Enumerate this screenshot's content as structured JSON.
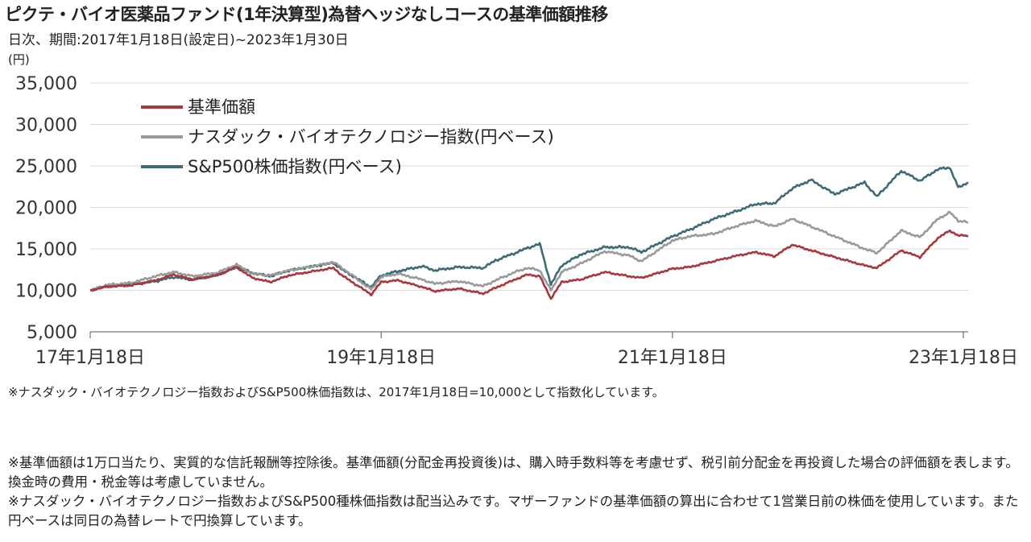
{
  "title": "ピクテ・バイオ医薬品ファンド(1年決算型)為替ヘッジなしコースの基準価額推移",
  "subtitle": "日次、期間:2017年1月18日(設定日)~2023年1月30日",
  "unit_label": "(円)",
  "note_index": "※ナスダック・バイオテクノロジー指数およびS&P500株価指数は、2017年1月18日=10,000として指数化しています。",
  "footer_notes": [
    "※基準価額は1万口当たり、実質的な信託報酬等控除後。基準価額(分配金再投資後)は、購入時手数料等を考慮せず、税引前分配金を再投資した場合の評価額を表します。換金時の費用・税金等は考慮していません。",
    "※ナスダック・バイオテクノロジー指数およびS&P500種株価指数は配当込みです。マザーファンドの基準価額の算出に合わせて1営業日前の株価を使用しています。また円ベースは同日の為替レートで円換算しています。"
  ],
  "chart_data": {
    "type": "line",
    "title": "ピクテ・バイオ医薬品ファンド(1年決算型)為替ヘッジなしコースの基準価額推移",
    "xlabel": "",
    "ylabel": "(円)",
    "ylim": [
      5000,
      35000
    ],
    "yticks": [
      5000,
      10000,
      15000,
      20000,
      25000,
      30000,
      35000
    ],
    "ytick_labels": [
      "5,000",
      "10,000",
      "15,000",
      "20,000",
      "25,000",
      "30,000",
      "35,000"
    ],
    "xlim": [
      "2017-01-18",
      "2023-01-30"
    ],
    "xticks": [
      "2017-01-18",
      "2019-01-18",
      "2021-01-18",
      "2023-01-18"
    ],
    "xtick_labels": [
      "17年1月18日",
      "19年1月18日",
      "21年1月18日",
      "23年1月18日"
    ],
    "grid": true,
    "legend_position": "top-left",
    "series": [
      {
        "name": "基準価額",
        "color": "#a8383b",
        "points": [
          [
            "2017-01-18",
            10000
          ],
          [
            "2017-03-01",
            10450
          ],
          [
            "2017-05-01",
            10600
          ],
          [
            "2017-07-01",
            11200
          ],
          [
            "2017-08-15",
            11900
          ],
          [
            "2017-10-01",
            11300
          ],
          [
            "2017-12-01",
            11800
          ],
          [
            "2018-01-20",
            12800
          ],
          [
            "2018-03-01",
            11500
          ],
          [
            "2018-04-15",
            11000
          ],
          [
            "2018-06-01",
            11800
          ],
          [
            "2018-08-01",
            12300
          ],
          [
            "2018-09-20",
            12700
          ],
          [
            "2018-10-15",
            11700
          ],
          [
            "2018-12-24",
            9500
          ],
          [
            "2019-01-18",
            11000
          ],
          [
            "2019-03-01",
            11200
          ],
          [
            "2019-05-01",
            10400
          ],
          [
            "2019-06-01",
            9900
          ],
          [
            "2019-08-01",
            10200
          ],
          [
            "2019-10-01",
            9600
          ],
          [
            "2019-11-01",
            10300
          ],
          [
            "2019-12-20",
            11300
          ],
          [
            "2020-01-20",
            11900
          ],
          [
            "2020-02-20",
            11700
          ],
          [
            "2020-03-19",
            9000
          ],
          [
            "2020-04-15",
            11000
          ],
          [
            "2020-06-01",
            11300
          ],
          [
            "2020-08-01",
            12200
          ],
          [
            "2020-10-01",
            11700
          ],
          [
            "2020-11-01",
            11500
          ],
          [
            "2021-01-18",
            12600
          ],
          [
            "2021-03-01",
            12800
          ],
          [
            "2021-05-01",
            13500
          ],
          [
            "2021-07-01",
            14200
          ],
          [
            "2021-08-15",
            14600
          ],
          [
            "2021-10-01",
            14100
          ],
          [
            "2021-11-15",
            15500
          ],
          [
            "2022-01-01",
            14800
          ],
          [
            "2022-03-01",
            14000
          ],
          [
            "2022-05-15",
            13000
          ],
          [
            "2022-06-15",
            12700
          ],
          [
            "2022-08-15",
            14800
          ],
          [
            "2022-10-01",
            14000
          ],
          [
            "2022-11-15",
            16300
          ],
          [
            "2022-12-15",
            17200
          ],
          [
            "2023-01-05",
            16600
          ],
          [
            "2023-01-30",
            16600
          ]
        ]
      },
      {
        "name": "ナスダック・バイオテクノロジー指数(円ベース)",
        "color": "#9a9a9a",
        "points": [
          [
            "2017-01-18",
            10000
          ],
          [
            "2017-03-01",
            10650
          ],
          [
            "2017-05-01",
            10900
          ],
          [
            "2017-07-01",
            11700
          ],
          [
            "2017-08-15",
            12200
          ],
          [
            "2017-10-01",
            11700
          ],
          [
            "2017-12-01",
            12100
          ],
          [
            "2018-01-20",
            13100
          ],
          [
            "2018-03-01",
            12000
          ],
          [
            "2018-04-15",
            11800
          ],
          [
            "2018-06-01",
            12400
          ],
          [
            "2018-08-01",
            12900
          ],
          [
            "2018-09-20",
            13400
          ],
          [
            "2018-10-15",
            12600
          ],
          [
            "2018-12-24",
            10100
          ],
          [
            "2019-01-18",
            11600
          ],
          [
            "2019-03-01",
            12000
          ],
          [
            "2019-05-01",
            11300
          ],
          [
            "2019-06-01",
            10800
          ],
          [
            "2019-08-01",
            11100
          ],
          [
            "2019-10-01",
            10500
          ],
          [
            "2019-11-01",
            11200
          ],
          [
            "2019-12-20",
            12200
          ],
          [
            "2020-01-20",
            12700
          ],
          [
            "2020-02-20",
            12400
          ],
          [
            "2020-03-19",
            10000
          ],
          [
            "2020-04-15",
            12200
          ],
          [
            "2020-06-01",
            13200
          ],
          [
            "2020-08-01",
            14700
          ],
          [
            "2020-10-01",
            14200
          ],
          [
            "2020-11-01",
            13500
          ],
          [
            "2021-01-18",
            16000
          ],
          [
            "2021-03-01",
            16500
          ],
          [
            "2021-05-01",
            16800
          ],
          [
            "2021-07-01",
            17800
          ],
          [
            "2021-08-15",
            18400
          ],
          [
            "2021-10-01",
            17700
          ],
          [
            "2021-11-15",
            18600
          ],
          [
            "2022-01-01",
            17700
          ],
          [
            "2022-03-01",
            16500
          ],
          [
            "2022-05-15",
            15000
          ],
          [
            "2022-06-15",
            14500
          ],
          [
            "2022-08-15",
            17200
          ],
          [
            "2022-10-01",
            16400
          ],
          [
            "2022-11-15",
            18600
          ],
          [
            "2022-12-15",
            19400
          ],
          [
            "2023-01-05",
            18400
          ],
          [
            "2023-01-30",
            18200
          ]
        ]
      },
      {
        "name": "S&P500株価指数(円ベース)",
        "color": "#3d6b78",
        "points": [
          [
            "2017-01-18",
            10000
          ],
          [
            "2017-03-01",
            10500
          ],
          [
            "2017-05-01",
            10700
          ],
          [
            "2017-07-01",
            11100
          ],
          [
            "2017-08-15",
            11600
          ],
          [
            "2017-10-01",
            11300
          ],
          [
            "2017-12-01",
            11800
          ],
          [
            "2018-01-20",
            12800
          ],
          [
            "2018-03-01",
            12100
          ],
          [
            "2018-04-15",
            11700
          ],
          [
            "2018-06-01",
            12400
          ],
          [
            "2018-08-01",
            12900
          ],
          [
            "2018-09-20",
            13300
          ],
          [
            "2018-10-15",
            12400
          ],
          [
            "2018-12-24",
            10400
          ],
          [
            "2019-01-18",
            11800
          ],
          [
            "2019-03-01",
            12300
          ],
          [
            "2019-05-01",
            12900
          ],
          [
            "2019-06-01",
            12400
          ],
          [
            "2019-08-01",
            12800
          ],
          [
            "2019-10-01",
            12700
          ],
          [
            "2019-11-01",
            13600
          ],
          [
            "2019-12-20",
            14500
          ],
          [
            "2020-01-20",
            15100
          ],
          [
            "2020-02-20",
            15600
          ],
          [
            "2020-03-19",
            10700
          ],
          [
            "2020-04-15",
            13000
          ],
          [
            "2020-06-01",
            14300
          ],
          [
            "2020-08-01",
            15200
          ],
          [
            "2020-10-01",
            15200
          ],
          [
            "2020-11-01",
            14600
          ],
          [
            "2021-01-18",
            16500
          ],
          [
            "2021-03-01",
            17300
          ],
          [
            "2021-05-01",
            18600
          ],
          [
            "2021-07-01",
            19600
          ],
          [
            "2021-08-15",
            20400
          ],
          [
            "2021-10-01",
            20500
          ],
          [
            "2021-11-15",
            22300
          ],
          [
            "2022-01-01",
            23300
          ],
          [
            "2022-03-01",
            21600
          ],
          [
            "2022-05-15",
            23000
          ],
          [
            "2022-06-15",
            21300
          ],
          [
            "2022-08-15",
            24400
          ],
          [
            "2022-10-01",
            23200
          ],
          [
            "2022-11-15",
            24600
          ],
          [
            "2022-12-15",
            24800
          ],
          [
            "2023-01-05",
            22400
          ],
          [
            "2023-01-30",
            23000
          ]
        ]
      }
    ]
  }
}
